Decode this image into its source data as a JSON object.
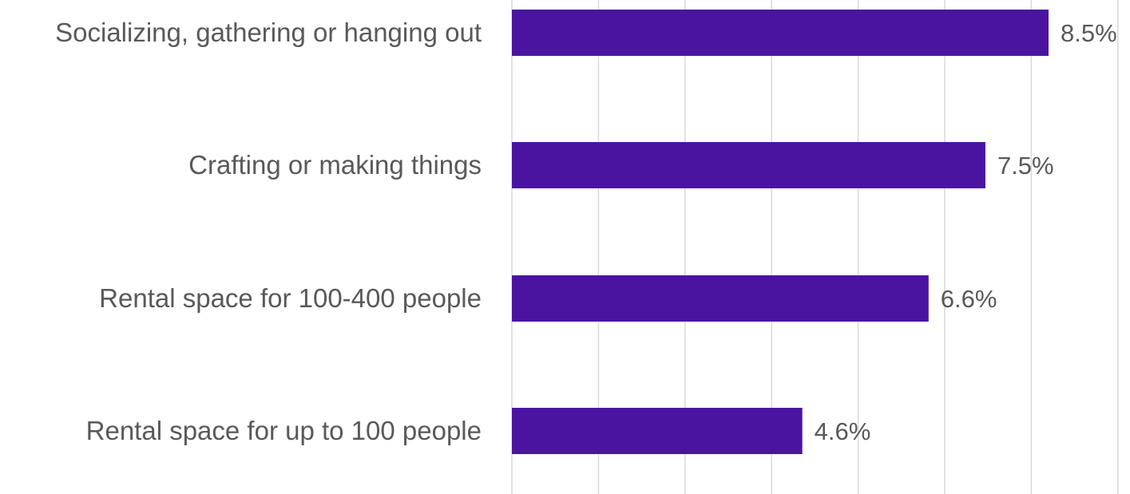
{
  "chart_data": {
    "type": "bar",
    "orientation": "horizontal",
    "categories": [
      "Socializing, gathering or hanging out",
      "Crafting or making things",
      "Rental space for 100-400 people",
      "Rental space for up to 100 people"
    ],
    "values": [
      8.5,
      7.5,
      6.6,
      4.6
    ],
    "value_labels": [
      "8.5%",
      "7.5%",
      "6.6%",
      "4.6%"
    ],
    "unit": "%",
    "xlim": [
      0,
      7.0
    ],
    "grid": true,
    "colors": {
      "bar": "#4b14a0",
      "gridline": "#d9d9d9",
      "text": "#595959"
    }
  }
}
